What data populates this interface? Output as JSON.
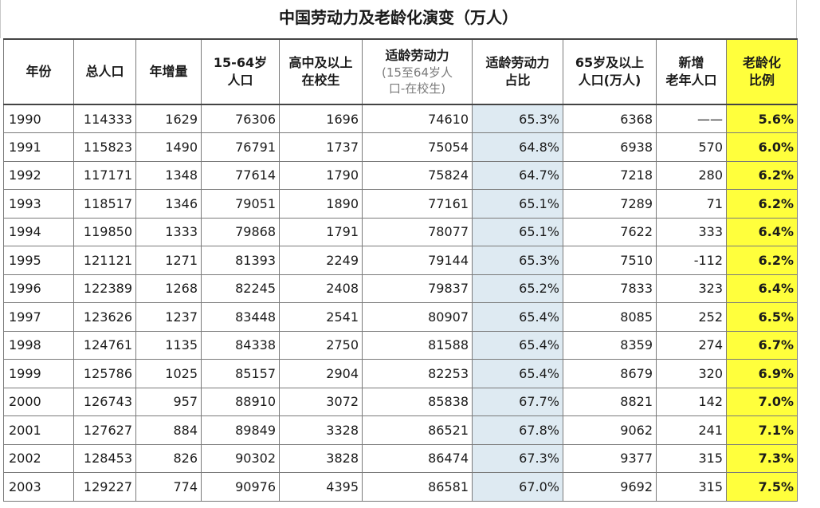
{
  "title": "中国劳动力及老龄化演变（万人）",
  "headers": {
    "year": "年份",
    "total": "总人口",
    "growth": "年增量",
    "pop1564_l1": "15-64岁",
    "pop1564_l2": "人口",
    "hs_l1": "高中及以上",
    "hs_l2": "在校生",
    "labor_l1": "适龄劳动力",
    "labor_sub1": "(15至64岁人",
    "labor_sub2": "口-在校生)",
    "ratio_l1": "适龄劳动力",
    "ratio_l2": "占比",
    "old_l1": "65岁及以上",
    "old_l2": "人口(万人)",
    "new_old_l1": "新增",
    "new_old_l2": "老年人口",
    "aging_l1": "老龄化",
    "aging_l2": "比例"
  },
  "rows": [
    {
      "year": "1990",
      "total": "114333",
      "growth": "1629",
      "pop1564": "76306",
      "hs": "1696",
      "labor": "74610",
      "ratio": "65.3%",
      "old": "6368",
      "new_old": "——",
      "aging": "5.6%"
    },
    {
      "year": "1991",
      "total": "115823",
      "growth": "1490",
      "pop1564": "76791",
      "hs": "1737",
      "labor": "75054",
      "ratio": "64.8%",
      "old": "6938",
      "new_old": "570",
      "aging": "6.0%"
    },
    {
      "year": "1992",
      "total": "117171",
      "growth": "1348",
      "pop1564": "77614",
      "hs": "1790",
      "labor": "75824",
      "ratio": "64.7%",
      "old": "7218",
      "new_old": "280",
      "aging": "6.2%"
    },
    {
      "year": "1993",
      "total": "118517",
      "growth": "1346",
      "pop1564": "79051",
      "hs": "1890",
      "labor": "77161",
      "ratio": "65.1%",
      "old": "7289",
      "new_old": "71",
      "aging": "6.2%"
    },
    {
      "year": "1994",
      "total": "119850",
      "growth": "1333",
      "pop1564": "79868",
      "hs": "1791",
      "labor": "78077",
      "ratio": "65.1%",
      "old": "7622",
      "new_old": "333",
      "aging": "6.4%"
    },
    {
      "year": "1995",
      "total": "121121",
      "growth": "1271",
      "pop1564": "81393",
      "hs": "2249",
      "labor": "79144",
      "ratio": "65.3%",
      "old": "7510",
      "new_old": "-112",
      "aging": "6.2%"
    },
    {
      "year": "1996",
      "total": "122389",
      "growth": "1268",
      "pop1564": "82245",
      "hs": "2408",
      "labor": "79837",
      "ratio": "65.2%",
      "old": "7833",
      "new_old": "323",
      "aging": "6.4%"
    },
    {
      "year": "1997",
      "total": "123626",
      "growth": "1237",
      "pop1564": "83448",
      "hs": "2541",
      "labor": "80907",
      "ratio": "65.4%",
      "old": "8085",
      "new_old": "252",
      "aging": "6.5%"
    },
    {
      "year": "1998",
      "total": "124761",
      "growth": "1135",
      "pop1564": "84338",
      "hs": "2750",
      "labor": "81588",
      "ratio": "65.4%",
      "old": "8359",
      "new_old": "274",
      "aging": "6.7%"
    },
    {
      "year": "1999",
      "total": "125786",
      "growth": "1025",
      "pop1564": "85157",
      "hs": "2904",
      "labor": "82253",
      "ratio": "65.4%",
      "old": "8679",
      "new_old": "320",
      "aging": "6.9%"
    },
    {
      "year": "2000",
      "total": "126743",
      "growth": "957",
      "pop1564": "88910",
      "hs": "3072",
      "labor": "85838",
      "ratio": "67.7%",
      "old": "8821",
      "new_old": "142",
      "aging": "7.0%"
    },
    {
      "year": "2001",
      "total": "127627",
      "growth": "884",
      "pop1564": "89849",
      "hs": "3328",
      "labor": "86521",
      "ratio": "67.8%",
      "old": "9062",
      "new_old": "241",
      "aging": "7.1%"
    },
    {
      "year": "2002",
      "total": "128453",
      "growth": "826",
      "pop1564": "90302",
      "hs": "3828",
      "labor": "86474",
      "ratio": "67.3%",
      "old": "9377",
      "new_old": "315",
      "aging": "7.3%"
    },
    {
      "year": "2003",
      "total": "129227",
      "growth": "774",
      "pop1564": "90976",
      "hs": "4395",
      "labor": "86581",
      "ratio": "67.0%",
      "old": "9692",
      "new_old": "315",
      "aging": "7.5%"
    }
  ],
  "colors": {
    "ratio_fill": "#deeaf2",
    "aging_fill": "#ffff3c"
  }
}
